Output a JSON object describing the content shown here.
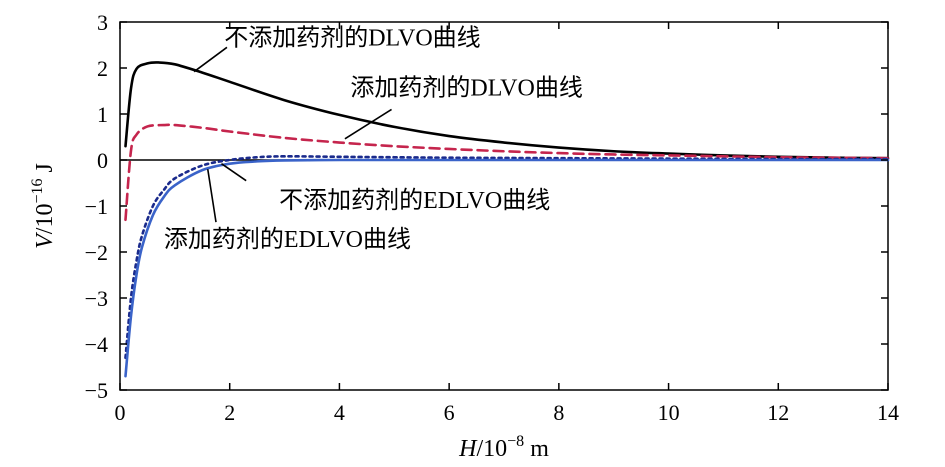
{
  "chart_data": {
    "type": "line",
    "title": "",
    "xlabel": {
      "var": "H",
      "rest": "/10",
      "exp": "−8",
      "unit": " m"
    },
    "ylabel": {
      "var": "V",
      "rest": "/10",
      "exp": "−16",
      "unit": " J"
    },
    "xlim": [
      0,
      14
    ],
    "ylim": [
      -5,
      3
    ],
    "x_ticks": [
      0,
      2,
      4,
      6,
      8,
      10,
      12,
      14
    ],
    "x_tick_labels": [
      "0",
      "2",
      "4",
      "6",
      "8",
      "10",
      "12",
      "14"
    ],
    "y_ticks": [
      3,
      2,
      1,
      0,
      -1,
      -2,
      -3,
      -4,
      -5
    ],
    "y_tick_labels": [
      "3",
      "2",
      "1",
      "0",
      "−1",
      "−2",
      "−3",
      "−4",
      "−5"
    ],
    "grid": false,
    "legend": "none",
    "zero_line": true,
    "series": [
      {
        "name": "不添加药剂的DLVO曲线",
        "color": "#000000",
        "dash": "solid",
        "x": [
          0.1,
          0.2,
          0.3,
          0.5,
          0.7,
          1.0,
          1.5,
          2,
          3,
          4,
          5,
          6,
          7,
          8,
          9,
          10,
          11,
          12,
          13,
          14
        ],
        "y": [
          0.3,
          1.55,
          1.98,
          2.1,
          2.12,
          2.08,
          1.9,
          1.7,
          1.3,
          0.98,
          0.72,
          0.52,
          0.38,
          0.27,
          0.19,
          0.14,
          0.1,
          0.07,
          0.05,
          0.04
        ]
      },
      {
        "name": "添加药剂的DLVO曲线",
        "color": "#c5254d",
        "dash": "dashed",
        "x": [
          0.1,
          0.2,
          0.3,
          0.5,
          0.8,
          1.0,
          1.5,
          2,
          3,
          4,
          5,
          6,
          7,
          8,
          9,
          10,
          11,
          12,
          13,
          14
        ],
        "y": [
          -1.3,
          0.2,
          0.55,
          0.73,
          0.76,
          0.76,
          0.7,
          0.62,
          0.48,
          0.38,
          0.3,
          0.24,
          0.19,
          0.15,
          0.12,
          0.1,
          0.08,
          0.06,
          0.05,
          0.04
        ]
      },
      {
        "name": "不添加药剂的EDLVO曲线",
        "color": "#1a2a8c",
        "dash": "dotted",
        "x": [
          0.1,
          0.2,
          0.3,
          0.4,
          0.6,
          0.8,
          1.0,
          1.5,
          2,
          2.5,
          3,
          4,
          5,
          6,
          8,
          10,
          12,
          14
        ],
        "y": [
          -4.3,
          -3.0,
          -2.2,
          -1.65,
          -1.0,
          -0.65,
          -0.4,
          -0.12,
          0.0,
          0.06,
          0.08,
          0.07,
          0.06,
          0.05,
          0.04,
          0.03,
          0.02,
          0.02
        ]
      },
      {
        "name": "添加药剂的EDLVO曲线",
        "color": "#3a63c9",
        "dash": "solid",
        "x": [
          0.1,
          0.2,
          0.3,
          0.4,
          0.6,
          0.8,
          1.0,
          1.5,
          2,
          2.5,
          3,
          4,
          5,
          6,
          8,
          10,
          12,
          14
        ],
        "y": [
          -4.7,
          -3.4,
          -2.5,
          -1.9,
          -1.2,
          -0.8,
          -0.55,
          -0.22,
          -0.08,
          -0.03,
          -0.01,
          0.0,
          0.0,
          0.0,
          0.0,
          0.0,
          0.0,
          0.0
        ]
      }
    ],
    "annotations": [
      {
        "text": "不添加药剂的DLVO曲线",
        "series": 0,
        "x": 1.9,
        "y": 2.68,
        "pointer": [
          [
            1.95,
            2.45
          ],
          [
            1.35,
            1.92
          ]
        ]
      },
      {
        "text": "添加药剂的DLVO曲线",
        "series": 1,
        "x": 4.2,
        "y": 1.6,
        "pointer": [
          [
            4.95,
            1.1
          ],
          [
            4.1,
            0.46
          ]
        ]
      },
      {
        "text": "不添加药剂的EDLVO曲线",
        "series": 2,
        "x": 2.9,
        "y": -0.85,
        "pointer": [
          [
            2.3,
            -0.45
          ],
          [
            1.85,
            -0.08
          ]
        ]
      },
      {
        "text": "添加药剂的EDLVO曲线",
        "series": 3,
        "x": 0.8,
        "y": -1.7,
        "pointer": [
          [
            1.75,
            -1.35
          ],
          [
            1.6,
            -0.2
          ]
        ]
      }
    ]
  }
}
